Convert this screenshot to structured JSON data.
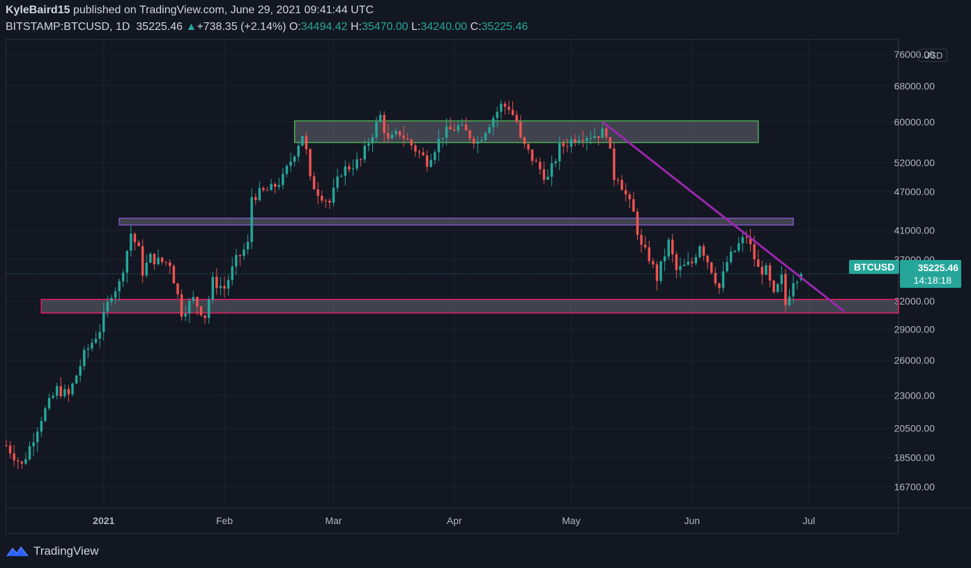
{
  "header": {
    "author": "KyleBaird15",
    "published_text": "published on TradingView.com, June 29, 2021 09:41:44 UTC",
    "symbol": "BITSTAMP:BTCUSD, 1D",
    "last_price": "35225.46",
    "change": "+738.35 (+2.14%)",
    "o_label": "O:",
    "o_value": "34494.42",
    "h_label": "H:",
    "h_value": "35470.00",
    "l_label": "L:",
    "l_value": "34240.00",
    "c_label": "C:",
    "c_value": "35225.46"
  },
  "price_tag": {
    "symbol": "BTCUSD",
    "price": "35225.46",
    "countdown": "14:18:18"
  },
  "currency_badge": "USD",
  "footer": {
    "brand": "TradingView"
  },
  "colors": {
    "bull": "#26a69a",
    "bear": "#ef5350",
    "background": "#131722",
    "grid": "#1e222d"
  },
  "chart_data": {
    "type": "candlestick",
    "y_scale": "log",
    "ylim": [
      15500,
      80000
    ],
    "y_ticks": [
      76000,
      68000,
      60000,
      52000,
      47000,
      41000,
      37000,
      32000,
      29000,
      26000,
      23000,
      20500,
      18500,
      16700
    ],
    "y_tick_labels": [
      "76000.00",
      "68000.00",
      "60000.00",
      "52000.00",
      "47000.00",
      "41000.00",
      "37000.00",
      "32000.00",
      "29000.00",
      "26000.00",
      "23000.00",
      "20500.00",
      "18500.00",
      "16700.00"
    ],
    "x_range": [
      "2020-12-07",
      "2021-07-24"
    ],
    "x_ticks": [
      {
        "date": "2021-01-01",
        "label": "2021"
      },
      {
        "date": "2021-02-01",
        "label": "Feb"
      },
      {
        "date": "2021-03-01",
        "label": "Mar"
      },
      {
        "date": "2021-04-01",
        "label": "Apr"
      },
      {
        "date": "2021-05-01",
        "label": "May"
      },
      {
        "date": "2021-06-01",
        "label": "Jun"
      },
      {
        "date": "2021-07-01",
        "label": "Jul"
      }
    ],
    "anchors": [
      [
        "2020-12-07",
        19300
      ],
      [
        "2020-12-11",
        18000
      ],
      [
        "2020-12-13",
        19200
      ],
      [
        "2020-12-16",
        21300
      ],
      [
        "2020-12-20",
        23500
      ],
      [
        "2020-12-23",
        23000
      ],
      [
        "2020-12-25",
        24700
      ],
      [
        "2020-12-27",
        26500
      ],
      [
        "2020-12-31",
        29000
      ],
      [
        "2021-01-03",
        33000
      ],
      [
        "2021-01-05",
        34000
      ],
      [
        "2021-01-08",
        40600
      ],
      [
        "2021-01-10",
        38200
      ],
      [
        "2021-01-11",
        35500
      ],
      [
        "2021-01-13",
        37300
      ],
      [
        "2021-01-15",
        36800
      ],
      [
        "2021-01-18",
        36600
      ],
      [
        "2021-01-21",
        30800
      ],
      [
        "2021-01-24",
        32200
      ],
      [
        "2021-01-27",
        30400
      ],
      [
        "2021-01-29",
        34300
      ],
      [
        "2021-02-01",
        33500
      ],
      [
        "2021-02-04",
        36900
      ],
      [
        "2021-02-07",
        39000
      ],
      [
        "2021-02-08",
        46200
      ],
      [
        "2021-02-13",
        47400
      ],
      [
        "2021-02-16",
        49200
      ],
      [
        "2021-02-21",
        57500
      ],
      [
        "2021-02-22",
        54000
      ],
      [
        "2021-02-23",
        48800
      ],
      [
        "2021-02-25",
        47000
      ],
      [
        "2021-02-28",
        45200
      ],
      [
        "2021-03-03",
        50500
      ],
      [
        "2021-03-08",
        52400
      ],
      [
        "2021-03-10",
        56000
      ],
      [
        "2021-03-13",
        61200
      ],
      [
        "2021-03-15",
        56000
      ],
      [
        "2021-03-18",
        57800
      ],
      [
        "2021-03-22",
        54500
      ],
      [
        "2021-03-25",
        52300
      ],
      [
        "2021-03-29",
        57500
      ],
      [
        "2021-04-02",
        59000
      ],
      [
        "2021-04-07",
        56000
      ],
      [
        "2021-04-10",
        59800
      ],
      [
        "2021-04-13",
        63500
      ],
      [
        "2021-04-15",
        63200
      ],
      [
        "2021-04-17",
        60000
      ],
      [
        "2021-04-18",
        56200
      ],
      [
        "2021-04-22",
        51700
      ],
      [
        "2021-04-25",
        49100
      ],
      [
        "2021-04-28",
        54800
      ],
      [
        "2021-05-03",
        57200
      ],
      [
        "2021-05-07",
        57300
      ],
      [
        "2021-05-10",
        58000
      ],
      [
        "2021-05-12",
        49500
      ],
      [
        "2021-05-13",
        49700
      ],
      [
        "2021-05-15",
        46400
      ],
      [
        "2021-05-17",
        43500
      ],
      [
        "2021-05-19",
        38600
      ],
      [
        "2021-05-21",
        37300
      ],
      [
        "2021-05-23",
        34700
      ],
      [
        "2021-05-26",
        39300
      ],
      [
        "2021-05-28",
        35600
      ],
      [
        "2021-06-01",
        36600
      ],
      [
        "2021-06-03",
        39200
      ],
      [
        "2021-06-06",
        35800
      ],
      [
        "2021-06-08",
        33500
      ],
      [
        "2021-06-10",
        36700
      ],
      [
        "2021-06-13",
        39000
      ],
      [
        "2021-06-15",
        40200
      ],
      [
        "2021-06-18",
        35800
      ],
      [
        "2021-06-20",
        35600
      ],
      [
        "2021-06-22",
        32500
      ],
      [
        "2021-06-24",
        34700
      ],
      [
        "2021-06-25",
        31600
      ],
      [
        "2021-06-27",
        34600
      ],
      [
        "2021-06-29",
        35225
      ]
    ],
    "last_candle": {
      "date": "2021-06-29",
      "open": 34494.42,
      "high": 35470.0,
      "low": 34240.0,
      "close": 35225.46
    },
    "zones": [
      {
        "name": "resistance-zone",
        "from": "2021-02-19",
        "to": "2021-06-18",
        "low": 55800,
        "high": 60200,
        "stroke": "#4caf50"
      },
      {
        "name": "mid-zone",
        "from": "2021-01-05",
        "to": "2021-06-27",
        "low": 41800,
        "high": 42800,
        "stroke": "#7e57c2"
      },
      {
        "name": "support-zone",
        "from": "2020-12-16",
        "to": "2021-07-24",
        "low": 30700,
        "high": 32200,
        "stroke": "#e91e63"
      }
    ],
    "trendline": {
      "from": [
        "2021-05-09",
        60000
      ],
      "to": [
        "2021-07-10",
        30900
      ],
      "color": "#9c27b0"
    },
    "current_price_line": 35225.46
  }
}
